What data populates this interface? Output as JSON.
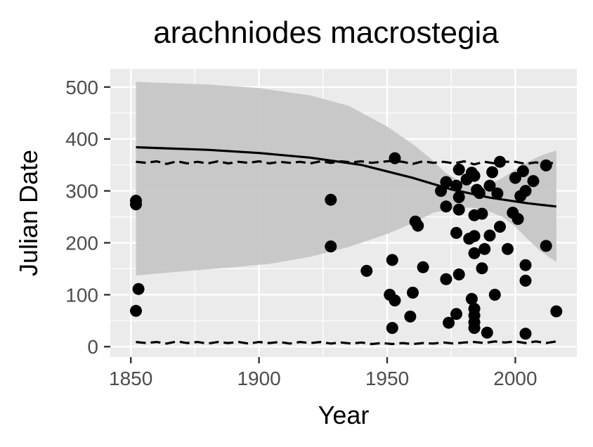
{
  "chart_data": {
    "type": "scatter",
    "title": "arachniodes macrostegia",
    "xlabel": "Year",
    "ylabel": "Julian Date",
    "xlim": [
      1842,
      2024
    ],
    "ylim": [
      -20,
      535
    ],
    "x_ticks": [
      1850,
      1900,
      1950,
      2000
    ],
    "y_ticks": [
      0,
      100,
      200,
      300,
      400,
      500
    ],
    "x_tick_labels": [
      "1850",
      "1900",
      "1950",
      "2000"
    ],
    "y_tick_labels": [
      "0",
      "100",
      "200",
      "300",
      "400",
      "500"
    ],
    "grid": true,
    "legend": "none",
    "colors": {
      "panel": "#ebebeb",
      "grid": "#ffffff",
      "ribbon": "#c6c6c6",
      "points": "#000000",
      "lines": "#000000"
    },
    "series": [
      {
        "kind": "points",
        "points": [
          [
            1852,
            281
          ],
          [
            1852,
            274
          ],
          [
            1853,
            111
          ],
          [
            1852,
            69
          ],
          [
            1928,
            283
          ],
          [
            1928,
            193
          ],
          [
            1942,
            146
          ],
          [
            1951,
            100
          ],
          [
            1952,
            167
          ],
          [
            1952,
            36
          ],
          [
            1953,
            89
          ],
          [
            1953,
            363
          ],
          [
            1959,
            58
          ],
          [
            1960,
            104
          ],
          [
            1961,
            241
          ],
          [
            1962,
            233
          ],
          [
            1964,
            153
          ],
          [
            1971,
            300
          ],
          [
            1973,
            317
          ],
          [
            1973,
            270
          ],
          [
            1973,
            130
          ],
          [
            1974,
            46
          ],
          [
            1977,
            310
          ],
          [
            1977,
            219
          ],
          [
            1977,
            63
          ],
          [
            1978,
            341
          ],
          [
            1978,
            288
          ],
          [
            1978,
            264
          ],
          [
            1978,
            139
          ],
          [
            1981,
            322
          ],
          [
            1982,
            208
          ],
          [
            1983,
            335
          ],
          [
            1983,
            92
          ],
          [
            1984,
            329
          ],
          [
            1984,
            253
          ],
          [
            1984,
            213
          ],
          [
            1984,
            180
          ],
          [
            1984,
            73
          ],
          [
            1984,
            60
          ],
          [
            1984,
            47
          ],
          [
            1984,
            36
          ],
          [
            1985,
            302
          ],
          [
            1986,
            296
          ],
          [
            1987,
            256
          ],
          [
            1987,
            151
          ],
          [
            1988,
            188
          ],
          [
            1989,
            27
          ],
          [
            1990,
            310
          ],
          [
            1990,
            214
          ],
          [
            1991,
            336
          ],
          [
            1992,
            100
          ],
          [
            1993,
            295
          ],
          [
            1994,
            356
          ],
          [
            1994,
            231
          ],
          [
            1997,
            188
          ],
          [
            1999,
            258
          ],
          [
            2000,
            325
          ],
          [
            2001,
            246
          ],
          [
            2002,
            290
          ],
          [
            2003,
            338
          ],
          [
            2004,
            300
          ],
          [
            2004,
            157
          ],
          [
            2004,
            127
          ],
          [
            2004,
            25
          ],
          [
            2007,
            319
          ],
          [
            2012,
            349
          ],
          [
            2012,
            194
          ],
          [
            2016,
            68
          ]
        ]
      },
      {
        "kind": "fit-line",
        "points": [
          [
            1852,
            384
          ],
          [
            1880,
            379
          ],
          [
            1900,
            373
          ],
          [
            1920,
            364
          ],
          [
            1940,
            350
          ],
          [
            1960,
            325
          ],
          [
            1975,
            303
          ],
          [
            1990,
            287
          ],
          [
            2005,
            276
          ],
          [
            2016,
            270
          ]
        ]
      },
      {
        "kind": "ribbon",
        "upper": [
          [
            1852,
            510
          ],
          [
            1880,
            505
          ],
          [
            1900,
            498
          ],
          [
            1920,
            484
          ],
          [
            1935,
            464
          ],
          [
            1950,
            424
          ],
          [
            1960,
            390
          ],
          [
            1967,
            362
          ],
          [
            1973,
            334
          ],
          [
            1980,
            314
          ],
          [
            1985,
            305
          ],
          [
            1990,
            312
          ],
          [
            1995,
            325
          ],
          [
            2000,
            341
          ],
          [
            2005,
            356
          ],
          [
            2010,
            368
          ],
          [
            2016,
            378
          ]
        ],
        "lower": [
          [
            1852,
            137
          ],
          [
            1870,
            145
          ],
          [
            1890,
            153
          ],
          [
            1905,
            160
          ],
          [
            1920,
            173
          ],
          [
            1935,
            192
          ],
          [
            1950,
            217
          ],
          [
            1960,
            238
          ],
          [
            1968,
            258
          ],
          [
            1975,
            265
          ],
          [
            1982,
            268
          ],
          [
            1988,
            264
          ],
          [
            1995,
            250
          ],
          [
            2000,
            231
          ],
          [
            2005,
            206
          ],
          [
            2010,
            183
          ],
          [
            2016,
            163
          ]
        ]
      },
      {
        "kind": "dashed-line",
        "points": [
          [
            1852,
            356
          ],
          [
            1856,
            354
          ],
          [
            1860,
            357
          ],
          [
            1864,
            352
          ],
          [
            1868,
            357
          ],
          [
            1872,
            353
          ],
          [
            1876,
            356
          ],
          [
            1880,
            353
          ],
          [
            1884,
            357
          ],
          [
            1888,
            353
          ],
          [
            1892,
            356
          ],
          [
            1896,
            354
          ],
          [
            1900,
            357
          ],
          [
            1904,
            353
          ],
          [
            1908,
            356
          ],
          [
            1912,
            354
          ],
          [
            1916,
            356
          ],
          [
            1920,
            353
          ],
          [
            1924,
            357
          ],
          [
            1928,
            354
          ],
          [
            1932,
            357
          ],
          [
            1936,
            355
          ],
          [
            1940,
            357
          ],
          [
            1944,
            354
          ],
          [
            1948,
            356
          ],
          [
            1952,
            358
          ],
          [
            1956,
            356
          ],
          [
            1960,
            352
          ],
          [
            1964,
            357
          ],
          [
            1968,
            354
          ],
          [
            1972,
            356
          ],
          [
            1976,
            353
          ],
          [
            1980,
            357
          ],
          [
            1984,
            351
          ],
          [
            1988,
            356
          ],
          [
            1992,
            353
          ],
          [
            1996,
            356
          ],
          [
            2000,
            356
          ],
          [
            2004,
            352
          ],
          [
            2008,
            355
          ],
          [
            2012,
            352
          ],
          [
            2016,
            355
          ]
        ]
      },
      {
        "kind": "dashed-line",
        "points": [
          [
            1852,
            9
          ],
          [
            1856,
            7
          ],
          [
            1860,
            9
          ],
          [
            1864,
            6
          ],
          [
            1868,
            10
          ],
          [
            1872,
            7
          ],
          [
            1876,
            9
          ],
          [
            1880,
            6
          ],
          [
            1884,
            9
          ],
          [
            1888,
            7
          ],
          [
            1892,
            9
          ],
          [
            1896,
            6
          ],
          [
            1900,
            9
          ],
          [
            1904,
            7
          ],
          [
            1908,
            9
          ],
          [
            1912,
            6
          ],
          [
            1916,
            9
          ],
          [
            1920,
            7
          ],
          [
            1924,
            9
          ],
          [
            1928,
            6
          ],
          [
            1932,
            8
          ],
          [
            1936,
            6
          ],
          [
            1940,
            8
          ],
          [
            1944,
            5
          ],
          [
            1948,
            7
          ],
          [
            1952,
            5
          ],
          [
            1956,
            7
          ],
          [
            1960,
            5
          ],
          [
            1964,
            7
          ],
          [
            1968,
            6
          ],
          [
            1972,
            8
          ],
          [
            1976,
            6
          ],
          [
            1980,
            8
          ],
          [
            1984,
            9
          ],
          [
            1988,
            7
          ],
          [
            1992,
            10
          ],
          [
            1996,
            8
          ],
          [
            2000,
            10
          ],
          [
            2004,
            7
          ],
          [
            2008,
            10
          ],
          [
            2012,
            7
          ],
          [
            2016,
            10
          ]
        ]
      }
    ]
  }
}
